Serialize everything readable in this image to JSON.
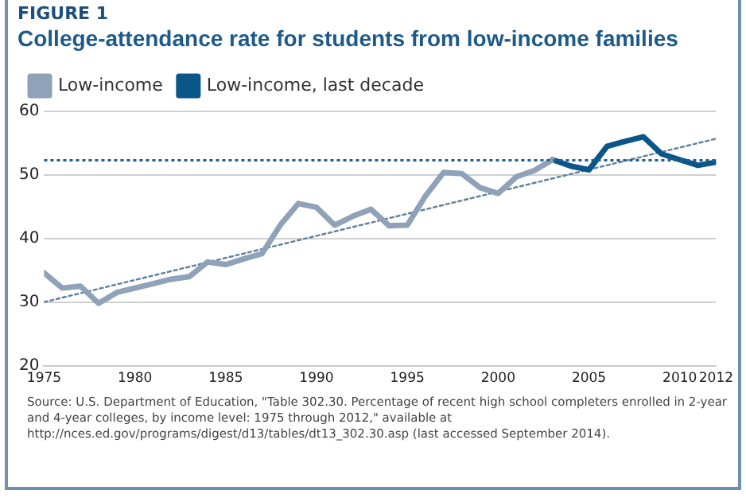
{
  "chart_data": {
    "type": "line",
    "subtitle": "FIGURE 1",
    "title": "College-attendance rate for students from low-income families",
    "series": [
      {
        "name": "Low-income",
        "color": "#8fa2b7",
        "x": [
          1975,
          1976,
          1977,
          1978,
          1979,
          1980,
          1981,
          1982,
          1983,
          1984,
          1985,
          1986,
          1987,
          1988,
          1989,
          1990,
          1991,
          1992,
          1993,
          1994,
          1995,
          1996,
          1997,
          1998,
          1999,
          2000,
          2001,
          2002,
          2003
        ],
        "values": [
          34.6,
          32.2,
          32.5,
          29.8,
          31.5,
          32.2,
          32.9,
          33.6,
          34.0,
          36.3,
          35.9,
          36.8,
          37.6,
          42.1,
          45.5,
          44.9,
          42.1,
          43.5,
          44.6,
          42.0,
          42.1,
          46.7,
          50.4,
          50.2,
          48.0,
          47.1,
          49.7,
          50.7,
          52.4
        ]
      },
      {
        "name": "Low-income, last decade",
        "color": "#0b5688",
        "x": [
          2003,
          2004,
          2005,
          2006,
          2007,
          2008,
          2009,
          2010,
          2011,
          2012
        ],
        "values": [
          52.4,
          51.4,
          50.8,
          54.5,
          55.3,
          56.0,
          53.3,
          52.4,
          51.5,
          52.0
        ]
      },
      {
        "type": "line",
        "color": "#5f7f9f",
        "line_style": "dotted",
        "x": [
          1975,
          2012
        ],
        "values": [
          30.0,
          55.7
        ]
      }
    ],
    "ref_lines": [
      {
        "axis": "y",
        "value": 52.3,
        "color": "#1f5f8f",
        "line_style": "dotted"
      }
    ],
    "xlim": [
      1975,
      2012
    ],
    "xticks": [
      1975,
      1980,
      1985,
      1990,
      1995,
      2000,
      2005,
      2010,
      2012
    ],
    "ylim": [
      20,
      60
    ],
    "yticks": [
      20,
      30,
      40,
      50,
      60
    ],
    "grid": "y",
    "legend": "top left",
    "marker": "none",
    "annotations": [
      "Source: U.S. Department of Education, \"Table 302.30. Percentage of recent high school completers enrolled in 2-year and 4-year colleges, by income level: 1975 through 2012,\" available at http://nces.ed.gov/programs/digest/d13/tables/dt13_302.30.asp (last accessed September 2014)."
    ]
  }
}
